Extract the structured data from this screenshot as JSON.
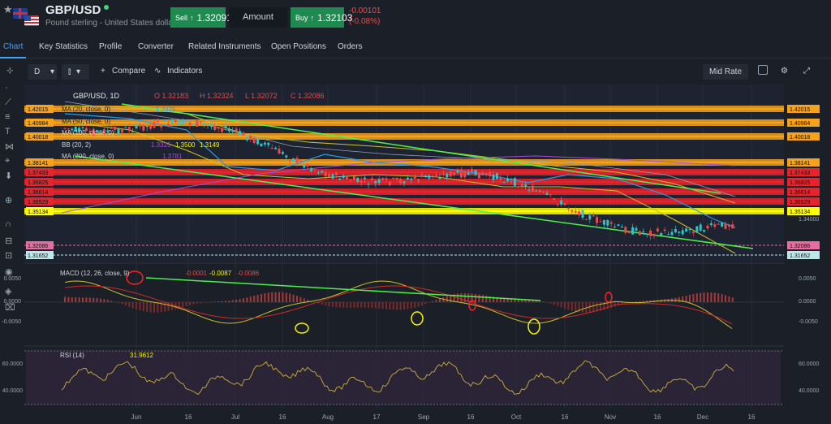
{
  "header": {
    "symbol": "GBP/USD",
    "description": "Pound sterling - United States dollar",
    "sell_label": "Sell",
    "sell_price": "1.32091",
    "amount_label": "Amount",
    "buy_label": "Buy",
    "buy_price": "1.32103",
    "change_abs": "-0.00101",
    "change_pct": "(-0.08%)"
  },
  "tabs": [
    "Chart",
    "Key Statistics",
    "Profile",
    "Converter",
    "Related Instruments",
    "Open Positions",
    "Orders"
  ],
  "toolbar": {
    "interval": "D",
    "compare": "Compare",
    "indicators": "Indicators",
    "rate": "Mid Rate"
  },
  "legend": {
    "title": "GBP/USD, 1D",
    "o": "O 1.32183",
    "h": "H 1.32324",
    "l": "L 1.32072",
    "c": "C 1.32086",
    "ma20": "MA (20, close, 0)",
    "ma20_val": "1.3325",
    "ma50": "MA (50, close, 0)",
    "ma100": "MA (100, close, 0)",
    "bb": "BB (20, 2)",
    "bb_v1": "1.3325",
    "bb_v2": "1.3500",
    "bb_v3": "1.3149",
    "ma200": "MA (200, close, 0)",
    "ma200_val": "1.3781",
    "macd": "MACD (12, 26, close, 9)",
    "macd_v1": "-0.0001",
    "macd_v2": "-0.0087",
    "macd_v3": "-0.0086",
    "rsi": "RSI (14)",
    "rsi_val": "31.9612"
  },
  "price_axis": {
    "levels": [
      {
        "label": "1.42015",
        "color": "#f7a21b"
      },
      {
        "label": "1.40984",
        "color": "#f7a21b"
      },
      {
        "label": "1.40018",
        "color": "#f7a21b"
      },
      {
        "label": "1.38141",
        "color": "#f7a21b"
      },
      {
        "label": "1.37433",
        "color": "#e8232b"
      },
      {
        "label": "1.36825",
        "color": "#e8232b"
      },
      {
        "label": "1.36614",
        "color": "#e8232b"
      },
      {
        "label": "1.36529",
        "color": "#e8232b"
      },
      {
        "label": "1.35134",
        "color": "#ffff00"
      },
      {
        "label": "1.32086",
        "color": "#e86da0"
      },
      {
        "label": "1.31652",
        "color": "#bde7ea"
      }
    ],
    "plain_tick": "1.34000",
    "macd_ticks": [
      "0.0050",
      "0.0000",
      "-0.0050"
    ],
    "rsi_ticks": [
      "60.0000",
      "40.0000"
    ]
  },
  "time_axis": [
    "Jun",
    "16",
    "Jul",
    "16",
    "Aug",
    "17",
    "Sep",
    "16",
    "Oct",
    "16",
    "Nov",
    "16",
    "Dec",
    "16"
  ],
  "colors": {
    "up": "#2ec4c9",
    "down": "#ef4a4a",
    "trend": "#4ef04e"
  }
}
